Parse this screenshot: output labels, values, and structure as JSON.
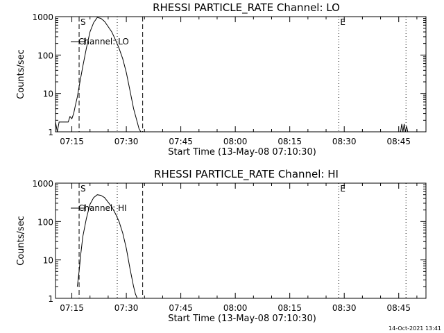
{
  "footer_date": "14-Oct-2021 13:41",
  "chart_data": [
    {
      "type": "line",
      "title": "RHESSI PARTICLE_RATE Channel: LO",
      "xlabel": "Start Time (13-May-08 07:10:30)",
      "ylabel": "Counts/sec",
      "y_scale": "log",
      "xlim": [
        "07:10:30",
        "08:52:30"
      ],
      "ylim": [
        1,
        1000
      ],
      "x_ticks": [
        "07:15",
        "07:30",
        "07:45",
        "08:00",
        "08:15",
        "08:30",
        "08:45"
      ],
      "y_ticks": [
        "1",
        "10",
        "100",
        "1000"
      ],
      "legend": {
        "label": "Channel: LO",
        "placement": "top-left"
      },
      "markers": [
        {
          "label": "S",
          "x": "07:17:00",
          "style": "dashed"
        },
        {
          "label": "",
          "x": "07:27:30",
          "style": "dotted"
        },
        {
          "label": "",
          "x": "07:34:30",
          "style": "dashed"
        },
        {
          "label": "E",
          "x": "08:28:30",
          "style": "dotted"
        },
        {
          "label": "",
          "x": "08:47:00",
          "style": "dotted"
        }
      ],
      "series": [
        {
          "name": "Channel: LO",
          "x": [
            "07:10:30",
            "07:11:00",
            "07:11:30",
            "07:12:00",
            "07:13:00",
            "07:14:00",
            "07:14:30",
            "07:15:00",
            "07:15:30",
            "07:16:00",
            "07:16:30",
            "07:17:00",
            "07:18:00",
            "07:19:00",
            "07:20:00",
            "07:21:00",
            "07:22:00",
            "07:23:00",
            "07:24:00",
            "07:25:00",
            "07:26:00",
            "07:27:00",
            "07:28:00",
            "07:29:00",
            "07:30:00",
            "07:31:00",
            "07:32:00",
            "07:33:00",
            "07:33:30",
            "07:34:00"
          ],
          "y": [
            1.8,
            1.0,
            1.8,
            1.8,
            1.8,
            1.8,
            2.5,
            2.2,
            3,
            5,
            8,
            15,
            50,
            150,
            400,
            700,
            950,
            900,
            750,
            550,
            400,
            250,
            150,
            80,
            35,
            12,
            4,
            1.8,
            1.2,
            1.0
          ]
        },
        {
          "name": "Channel: LO",
          "x": [
            "08:45:30",
            "08:45:50",
            "08:46:10",
            "08:46:30",
            "08:46:50",
            "08:47:10",
            "08:47:30"
          ],
          "y": [
            1.0,
            1.6,
            1.0,
            1.6,
            1.0,
            1.4,
            1.0
          ]
        }
      ]
    },
    {
      "type": "line",
      "title": "RHESSI PARTICLE_RATE Channel: HI",
      "xlabel": "Start Time (13-May-08 07:10:30)",
      "ylabel": "Counts/sec",
      "y_scale": "log",
      "xlim": [
        "07:10:30",
        "08:52:30"
      ],
      "ylim": [
        1,
        1000
      ],
      "x_ticks": [
        "07:15",
        "07:30",
        "07:45",
        "08:00",
        "08:15",
        "08:30",
        "08:45"
      ],
      "y_ticks": [
        "1",
        "10",
        "100",
        "1000"
      ],
      "legend": {
        "label": "Channel: HI",
        "placement": "top-left"
      },
      "markers": [
        {
          "label": "S",
          "x": "07:17:00",
          "style": "dashed"
        },
        {
          "label": "",
          "x": "07:27:30",
          "style": "dotted"
        },
        {
          "label": "",
          "x": "07:34:30",
          "style": "dashed"
        },
        {
          "label": "E",
          "x": "08:28:30",
          "style": "dotted"
        },
        {
          "label": "",
          "x": "08:47:00",
          "style": "dotted"
        }
      ],
      "series": [
        {
          "name": "Channel: HI",
          "x": [
            "07:16:30",
            "07:17:00",
            "07:17:30",
            "07:18:00",
            "07:19:00",
            "07:20:00",
            "07:21:00",
            "07:22:00",
            "07:23:00",
            "07:24:00",
            "07:25:00",
            "07:26:00",
            "07:27:00",
            "07:28:00",
            "07:29:00",
            "07:30:00",
            "07:31:00",
            "07:32:00",
            "07:32:30",
            "07:33:00"
          ],
          "y": [
            2,
            5,
            15,
            40,
            120,
            280,
            420,
            500,
            480,
            420,
            320,
            240,
            160,
            100,
            50,
            20,
            6,
            2.0,
            1.3,
            1.0
          ]
        }
      ]
    }
  ]
}
